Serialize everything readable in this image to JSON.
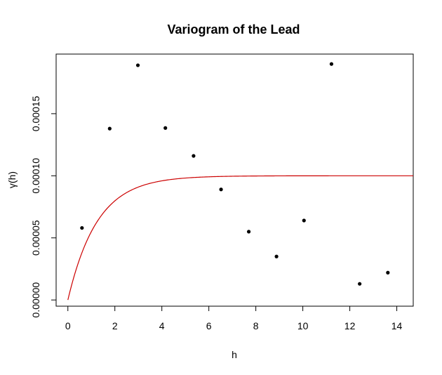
{
  "chart_data": {
    "type": "scatter",
    "title": "Variogram of the Lead",
    "xlabel": "h",
    "ylabel": "γ(h)",
    "xlim": [
      -0.5,
      14.7
    ],
    "ylim": [
      -5e-06,
      0.000198
    ],
    "x_ticks": [
      0,
      2,
      4,
      6,
      8,
      10,
      12,
      14
    ],
    "x_tick_labels": [
      "0",
      "2",
      "4",
      "6",
      "8",
      "10",
      "12",
      "14"
    ],
    "y_ticks": [
      0,
      5e-05,
      0.0001,
      0.00015
    ],
    "y_tick_labels": [
      "0.00000",
      "0.00005",
      "0.00010",
      "0.00015"
    ],
    "grid": false,
    "points": [
      {
        "x": 0.6,
        "y": 5.8e-05
      },
      {
        "x": 1.78,
        "y": 0.000138
      },
      {
        "x": 2.98,
        "y": 0.000189
      },
      {
        "x": 4.15,
        "y": 0.0001385
      },
      {
        "x": 5.35,
        "y": 0.000116
      },
      {
        "x": 6.52,
        "y": 8.9e-05
      },
      {
        "x": 7.7,
        "y": 5.5e-05
      },
      {
        "x": 8.88,
        "y": 3.5e-05
      },
      {
        "x": 10.05,
        "y": 6.4e-05
      },
      {
        "x": 11.22,
        "y": 0.00019
      },
      {
        "x": 12.42,
        "y": 1.3e-05
      },
      {
        "x": 13.62,
        "y": 2.2e-05
      }
    ],
    "point_color": "#000000",
    "model_curve": {
      "type": "exponential",
      "nugget": 0,
      "sill": 0.0001,
      "range": 1.25,
      "x_from": 0,
      "x_to": 14.7,
      "color": "#cc0000"
    }
  }
}
